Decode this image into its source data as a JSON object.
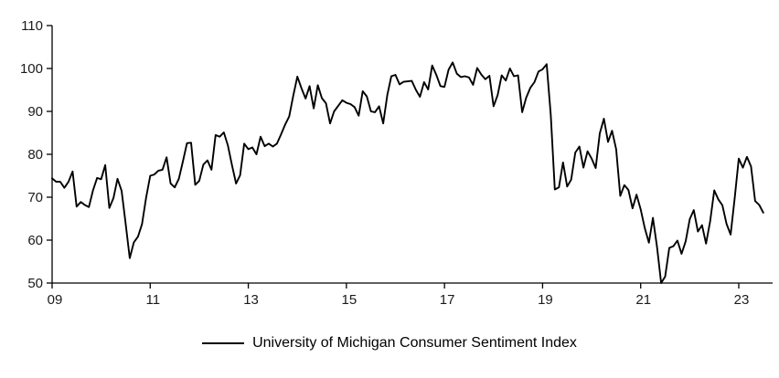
{
  "chart_data": {
    "type": "line",
    "title": "",
    "legend": {
      "label": "University of Michigan Consumer Sentiment Index",
      "position": "bottom-center",
      "swatch": "black-line"
    },
    "line_color": "#000000",
    "axis_color": "#000000",
    "label_color": "#1a1a1a",
    "background": "#ffffff",
    "grid": "off",
    "x_axis": {
      "tick_labels": [
        "09",
        "11",
        "13",
        "15",
        "17",
        "19",
        "21",
        "23"
      ],
      "tick_month_indices": [
        0,
        24,
        48,
        72,
        96,
        120,
        144,
        168
      ]
    },
    "y_axis": {
      "min": 50,
      "max": 110,
      "ticks": [
        50,
        60,
        70,
        80,
        90,
        100,
        110
      ]
    },
    "series": [
      {
        "name": "University of Michigan Consumer Sentiment Index",
        "cadence": "monthly",
        "values": [
          74.4,
          73.6,
          73.6,
          72.2,
          73.6,
          76.0,
          67.8,
          68.9,
          68.2,
          67.7,
          71.6,
          74.5,
          74.2,
          77.5,
          67.5,
          69.8,
          74.3,
          71.5,
          63.7,
          55.8,
          59.5,
          60.8,
          63.7,
          69.9,
          75.0,
          75.3,
          76.2,
          76.4,
          79.3,
          73.2,
          72.3,
          74.3,
          78.3,
          82.6,
          82.7,
          72.9,
          73.8,
          77.6,
          78.6,
          76.4,
          84.5,
          84.1,
          85.1,
          82.1,
          77.5,
          73.2,
          75.1,
          82.5,
          81.2,
          81.6,
          80.0,
          84.1,
          81.9,
          82.5,
          81.8,
          82.5,
          84.6,
          86.9,
          88.8,
          93.6,
          98.1,
          95.4,
          93.0,
          95.9,
          90.7,
          96.1,
          93.1,
          91.9,
          87.2,
          90.0,
          91.3,
          92.6,
          92.0,
          91.7,
          91.0,
          89.0,
          94.7,
          93.5,
          90.0,
          89.8,
          91.2,
          87.2,
          93.8,
          98.2,
          98.5,
          96.3,
          96.9,
          97.0,
          97.1,
          95.0,
          93.4,
          96.8,
          95.1,
          100.7,
          98.5,
          95.9,
          95.7,
          99.7,
          101.4,
          98.8,
          98.0,
          98.2,
          97.9,
          96.2,
          100.1,
          98.6,
          97.5,
          98.3,
          91.2,
          93.8,
          98.4,
          97.2,
          100.0,
          98.2,
          98.4,
          89.8,
          93.2,
          95.5,
          96.8,
          99.3,
          99.8,
          101.0,
          89.1,
          71.8,
          72.3,
          78.1,
          72.5,
          74.1,
          80.4,
          81.8,
          76.9,
          80.7,
          79.0,
          76.8,
          84.9,
          88.3,
          82.9,
          85.5,
          81.2,
          70.3,
          72.8,
          71.7,
          67.4,
          70.6,
          67.2,
          62.8,
          59.4,
          65.2,
          58.4,
          50.0,
          51.5,
          58.2,
          58.6,
          59.9,
          56.8,
          59.7,
          64.9,
          67.0,
          62.0,
          63.5,
          59.2,
          64.4,
          71.6,
          69.5,
          68.1,
          63.8,
          61.3,
          69.7,
          79.0,
          76.9,
          79.4,
          77.2,
          69.1,
          68.2,
          66.4
        ]
      }
    ]
  }
}
